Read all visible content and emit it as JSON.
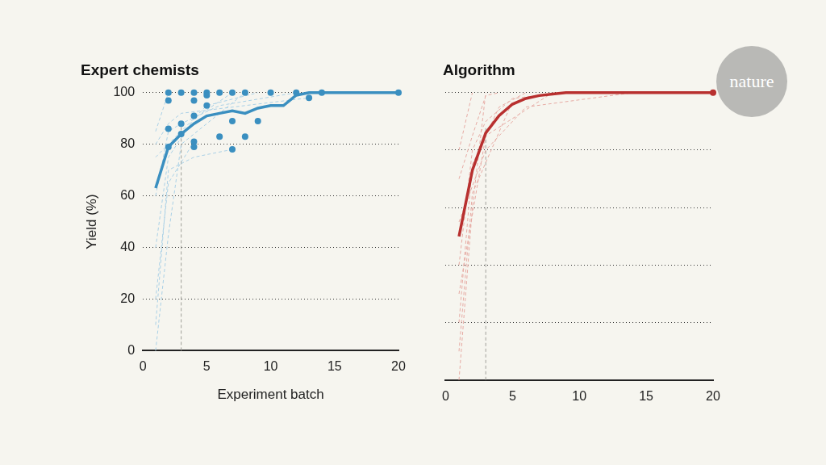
{
  "logo": "nature",
  "chart_data": [
    {
      "type": "line",
      "title": "Expert chemists",
      "x_label": "Experiment batch",
      "y_label": "Yield (%)",
      "xlim": [
        0,
        20
      ],
      "xticks": [
        0,
        5,
        10,
        15,
        20
      ],
      "ylim": [
        0,
        100
      ],
      "yticks": [
        0,
        20,
        40,
        60,
        80,
        100
      ],
      "grid": true,
      "series": [
        {
          "color": "#a9d0e6",
          "line_style": "dashed",
          "x": [
            1,
            2,
            3,
            5,
            8
          ],
          "values": [
            0,
            45,
            80,
            88,
            100
          ]
        },
        {
          "color": "#a9d0e6",
          "line_style": "dashed",
          "x": [
            1,
            2,
            4,
            7
          ],
          "values": [
            40,
            75,
            90,
            100
          ]
        },
        {
          "color": "#a9d0e6",
          "line_style": "dashed",
          "x": [
            1,
            2,
            3,
            6,
            12
          ],
          "values": [
            60,
            85,
            88,
            95,
            100
          ]
        },
        {
          "color": "#a9d0e6",
          "line_style": "dashed",
          "x": [
            1,
            3,
            5,
            9
          ],
          "values": [
            75,
            85,
            95,
            100
          ]
        },
        {
          "color": "#a9d0e6",
          "line_style": "dashed",
          "x": [
            1,
            2,
            4,
            7
          ],
          "values": [
            10,
            70,
            75,
            78
          ]
        },
        {
          "color": "#a9d0e6",
          "line_style": "dashed",
          "x": [
            1,
            2,
            3,
            13
          ],
          "values": [
            80,
            88,
            92,
            98
          ]
        },
        {
          "color": "#a9d0e6",
          "line_style": "dashed",
          "x": [
            1,
            2
          ],
          "values": [
            85,
            100
          ]
        },
        {
          "color": "#a9d0e6",
          "line_style": "dashed",
          "x": [
            1,
            2,
            4
          ],
          "values": [
            20,
            65,
            81
          ]
        },
        {
          "color": "#a0a09a",
          "line_style": "dashed",
          "x": [
            3,
            3
          ],
          "values": [
            0,
            88
          ]
        },
        {
          "color": "#3a8fc0",
          "line_style": "solid",
          "x": [
            1,
            2,
            3,
            4,
            5,
            6,
            7,
            8,
            9,
            10,
            11,
            12,
            13,
            14,
            15,
            16,
            17,
            18,
            19,
            20
          ],
          "values": [
            63,
            79,
            84,
            88,
            91,
            92,
            93,
            92,
            94,
            95,
            95,
            99,
            100,
            100,
            100,
            100,
            100,
            100,
            100,
            100
          ]
        },
        {
          "type": "scatter",
          "marker": "circle",
          "color": "#3a8fc0",
          "x": [
            2,
            3,
            4,
            5,
            6,
            7,
            8,
            10,
            12,
            14,
            20,
            2,
            2,
            2,
            3,
            3,
            4,
            4,
            4,
            4,
            5,
            5,
            6,
            7,
            7,
            8,
            9,
            13
          ],
          "values": [
            100,
            100,
            100,
            100,
            100,
            100,
            100,
            100,
            100,
            100,
            100,
            97,
            86,
            79,
            88,
            84,
            91,
            97,
            81,
            79,
            95,
            99,
            83,
            89,
            78,
            83,
            89,
            98
          ]
        }
      ]
    },
    {
      "type": "line",
      "title": "Algorithm",
      "xlim": [
        0,
        20
      ],
      "xticks": [
        0,
        5,
        10,
        15,
        20
      ],
      "ylim": [
        0,
        100
      ],
      "yticks": [
        0,
        20,
        40,
        60,
        80,
        100
      ],
      "grid": true,
      "tick_labels": "x",
      "series": [
        {
          "color": "#e6aaa3",
          "line_style": "dashed",
          "x": [
            1,
            2,
            3
          ],
          "values": [
            0,
            60,
            100
          ]
        },
        {
          "color": "#e6aaa3",
          "line_style": "dashed",
          "x": [
            1,
            2,
            4,
            6
          ],
          "values": [
            20,
            75,
            95,
            100
          ]
        },
        {
          "color": "#e6aaa3",
          "line_style": "dashed",
          "x": [
            1,
            2,
            3,
            5,
            9
          ],
          "values": [
            40,
            80,
            90,
            98,
            100
          ]
        },
        {
          "color": "#e6aaa3",
          "line_style": "dashed",
          "x": [
            1,
            3,
            6,
            14
          ],
          "values": [
            55,
            80,
            95,
            100
          ]
        },
        {
          "color": "#e6aaa3",
          "line_style": "dashed",
          "x": [
            1,
            2,
            3,
            4
          ],
          "values": [
            70,
            85,
            99,
            100
          ]
        },
        {
          "color": "#e6aaa3",
          "line_style": "dashed",
          "x": [
            1,
            2
          ],
          "values": [
            80,
            100
          ]
        },
        {
          "color": "#e6aaa3",
          "line_style": "dashed",
          "x": [
            1,
            3,
            8
          ],
          "values": [
            30,
            85,
            100
          ]
        },
        {
          "color": "#e6aaa3",
          "line_style": "dashed",
          "x": [
            1,
            2,
            5
          ],
          "values": [
            10,
            65,
            97
          ]
        },
        {
          "color": "#a0a09a",
          "line_style": "dashed",
          "x": [
            3,
            3
          ],
          "values": [
            0,
            88
          ]
        },
        {
          "color": "#b8302f",
          "line_style": "solid",
          "x": [
            1,
            2,
            3,
            4,
            5,
            6,
            7,
            8,
            9,
            10,
            11,
            12,
            13,
            14,
            15,
            16,
            17,
            18,
            19,
            20
          ],
          "values": [
            50,
            73,
            86,
            92,
            96,
            98,
            99,
            99.5,
            100,
            100,
            100,
            100,
            100,
            100,
            100,
            100,
            100,
            100,
            100,
            100
          ]
        },
        {
          "type": "scatter",
          "marker": "circle",
          "color": "#b8302f",
          "x": [
            20
          ],
          "values": [
            100
          ]
        }
      ]
    }
  ]
}
